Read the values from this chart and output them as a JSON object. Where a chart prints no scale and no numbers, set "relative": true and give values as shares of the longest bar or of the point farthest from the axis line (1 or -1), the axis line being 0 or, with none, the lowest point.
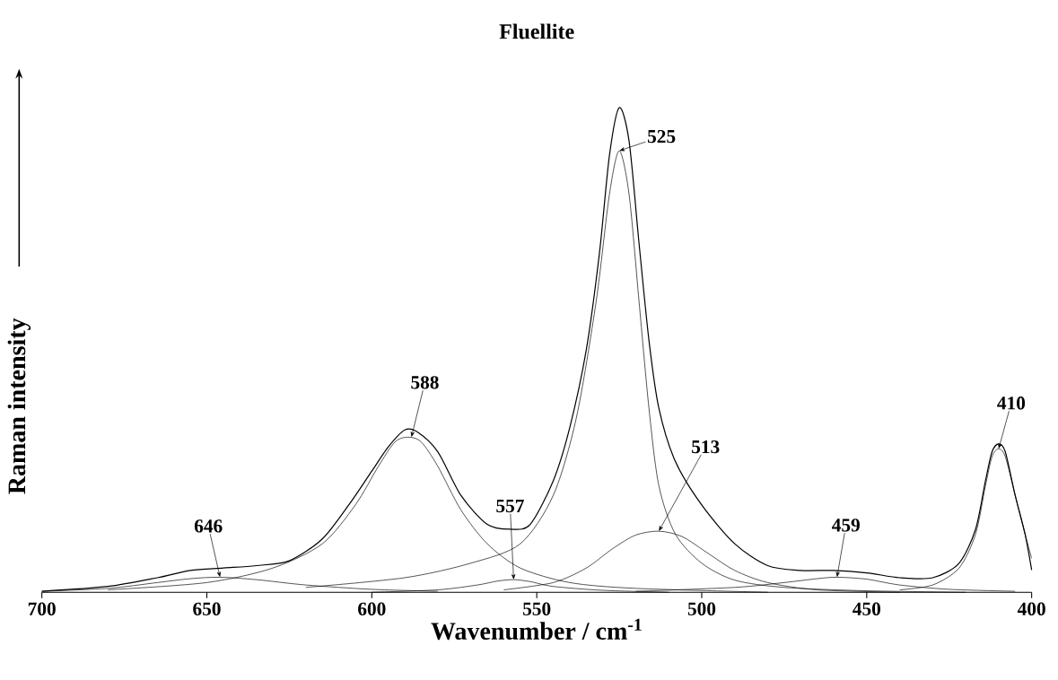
{
  "chart_data": {
    "type": "line",
    "relative": true,
    "title": "Fluellite",
    "xlabel": "Wavenumber / cm$^{-1}$",
    "ylabel": "Raman intensity",
    "xlim": [
      700,
      400
    ],
    "xticks": [
      700,
      650,
      600,
      550,
      500,
      450,
      400
    ],
    "series": [
      {
        "color": "#000000",
        "x": [
          700,
          680,
          665,
          655,
          645,
          635,
          625,
          615,
          607,
          600,
          595,
          590,
          586,
          580,
          573,
          565,
          558,
          552,
          545,
          540,
          535,
          531,
          528,
          525,
          522,
          519,
          516,
          513,
          508,
          500,
          490,
          480,
          470,
          460,
          450,
          440,
          430,
          422,
          417,
          414,
          412,
          410,
          408,
          405,
          402,
          400
        ],
        "values": [
          0.002,
          0.012,
          0.03,
          0.045,
          0.05,
          0.055,
          0.065,
          0.11,
          0.18,
          0.25,
          0.3,
          0.335,
          0.33,
          0.29,
          0.2,
          0.14,
          0.13,
          0.14,
          0.23,
          0.34,
          0.5,
          0.7,
          0.9,
          1.0,
          0.93,
          0.72,
          0.52,
          0.38,
          0.27,
          0.18,
          0.1,
          0.055,
          0.045,
          0.045,
          0.04,
          0.03,
          0.03,
          0.06,
          0.13,
          0.23,
          0.29,
          0.306,
          0.29,
          0.2,
          0.12,
          0.046
        ]
      },
      {
        "color": "#000000",
        "x": [
          700,
          680,
          665,
          655,
          646,
          635,
          620,
          600,
          580
        ],
        "values": [
          0.002,
          0.008,
          0.02,
          0.028,
          0.031,
          0.026,
          0.015,
          0.006,
          0.002
        ]
      },
      {
        "color": "#000000",
        "x": [
          680,
          650,
          630,
          615,
          605,
          598,
          593,
          589,
          585,
          580,
          573,
          565,
          555,
          540,
          520,
          480
        ],
        "values": [
          0.005,
          0.02,
          0.05,
          0.1,
          0.18,
          0.26,
          0.31,
          0.32,
          0.31,
          0.26,
          0.17,
          0.1,
          0.05,
          0.02,
          0.008,
          0.0
        ]
      },
      {
        "color": "#000000",
        "x": [
          600,
          580,
          568,
          562,
          557,
          552,
          545,
          530,
          510
        ],
        "values": [
          0.0,
          0.005,
          0.015,
          0.023,
          0.026,
          0.022,
          0.012,
          0.004,
          0.0
        ]
      },
      {
        "color": "#000000",
        "x": [
          620,
          590,
          570,
          555,
          545,
          538,
          532,
          528,
          525,
          522,
          519,
          516,
          513,
          508,
          500,
          490,
          475,
          450,
          420
        ],
        "values": [
          0.01,
          0.03,
          0.06,
          0.1,
          0.2,
          0.36,
          0.6,
          0.82,
          0.911,
          0.82,
          0.6,
          0.38,
          0.22,
          0.12,
          0.06,
          0.025,
          0.01,
          0.003,
          0.0
        ]
      },
      {
        "color": "#000000",
        "x": [
          560,
          545,
          535,
          527,
          520,
          513,
          506,
          498,
          490,
          480,
          465,
          440
        ],
        "values": [
          0.005,
          0.02,
          0.05,
          0.09,
          0.118,
          0.126,
          0.115,
          0.08,
          0.045,
          0.02,
          0.005,
          0.0
        ]
      },
      {
        "color": "#000000",
        "x": [
          520,
          490,
          475,
          465,
          459,
          450,
          440,
          425,
          405
        ],
        "values": [
          0.002,
          0.01,
          0.02,
          0.028,
          0.031,
          0.027,
          0.015,
          0.006,
          0.002
        ]
      },
      {
        "color": "#000000",
        "x": [
          440,
          430,
          422,
          417,
          414,
          412,
          410,
          408,
          405,
          402,
          400
        ],
        "values": [
          0.005,
          0.015,
          0.05,
          0.12,
          0.22,
          0.28,
          0.296,
          0.28,
          0.2,
          0.12,
          0.07
        ]
      }
    ],
    "annotations": [
      {
        "text": "646",
        "x": 646,
        "y": 0.031
      },
      {
        "text": "588",
        "x": 588,
        "y": 0.32
      },
      {
        "text": "557",
        "x": 557,
        "y": 0.026
      },
      {
        "text": "525",
        "x": 525,
        "y": 0.911
      },
      {
        "text": "513",
        "x": 513,
        "y": 0.126
      },
      {
        "text": "459",
        "x": 459,
        "y": 0.031
      },
      {
        "text": "410",
        "x": 410,
        "y": 0.296
      }
    ]
  }
}
